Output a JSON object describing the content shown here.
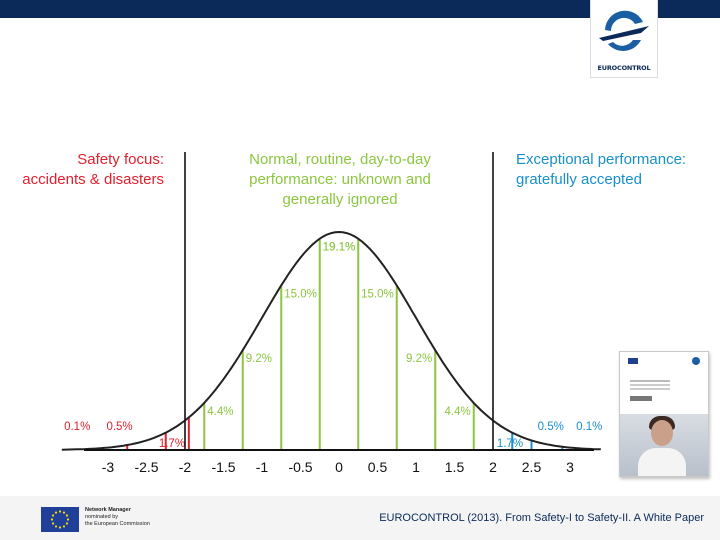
{
  "header": {
    "logo_text": "EUROCONTROL"
  },
  "headings": {
    "red": [
      "Safety focus:",
      "accidents & disasters"
    ],
    "green": [
      "Normal, routine, day-to-day",
      "performance: unknown and",
      "generally ignored"
    ],
    "blue": [
      "Exceptional performance:",
      "gratefully accepted"
    ]
  },
  "chart_data": {
    "type": "area",
    "title": "",
    "xlabel": "",
    "ylabel": "",
    "x_ticks": [
      "-3",
      "-2.5",
      "-2",
      "-1.5",
      "-1",
      "-0.5",
      "0",
      "0.5",
      "1",
      "1.5",
      "2",
      "2.5",
      "3"
    ],
    "xlim": [
      -3.6,
      3.4
    ],
    "curve": "normal distribution, mean 0, sd 1",
    "dividers_x": [
      -2,
      2
    ],
    "segments": [
      {
        "x": -2.75,
        "label": "0.1%",
        "color": "#e0202e"
      },
      {
        "x": -2.25,
        "label": "0.5%",
        "color": "#e0202e"
      },
      {
        "x": -1.95,
        "label": "1.7%",
        "color": "#e0202e"
      },
      {
        "x": -1.75,
        "label": "4.4%",
        "color": "#8cc63f"
      },
      {
        "x": -1.25,
        "label": "9.2%",
        "color": "#8cc63f"
      },
      {
        "x": -0.75,
        "label": "15.0%",
        "color": "#8cc63f"
      },
      {
        "x": -0.25,
        "label": "19.1%",
        "color": "#8cc63f"
      },
      {
        "x": 0.25,
        "label": "19.1%",
        "color": "#8cc63f"
      },
      {
        "x": 0.75,
        "label": "15.0%",
        "color": "#8cc63f"
      },
      {
        "x": 1.25,
        "label": "9.2%",
        "color": "#8cc63f"
      },
      {
        "x": 1.75,
        "label": "4.4%",
        "color": "#8cc63f"
      },
      {
        "x": 2.25,
        "label": "1.7%",
        "color": "#1a8fcb"
      },
      {
        "x": 2.5,
        "label": "0.5%",
        "color": "#1a8fcb"
      },
      {
        "x": 2.9,
        "label": "0.1%",
        "color": "#1a8fcb"
      }
    ],
    "colors": {
      "red": "#e0202e",
      "green": "#8cc63f",
      "blue": "#1a8fcb",
      "curve": "#222222"
    }
  },
  "footer": {
    "nm_lines": [
      "Network Manager",
      "nominated by",
      "the European Commission"
    ],
    "citation": "EUROCONTROL (2013). From Safety-I to Safety-II. A White Paper"
  }
}
